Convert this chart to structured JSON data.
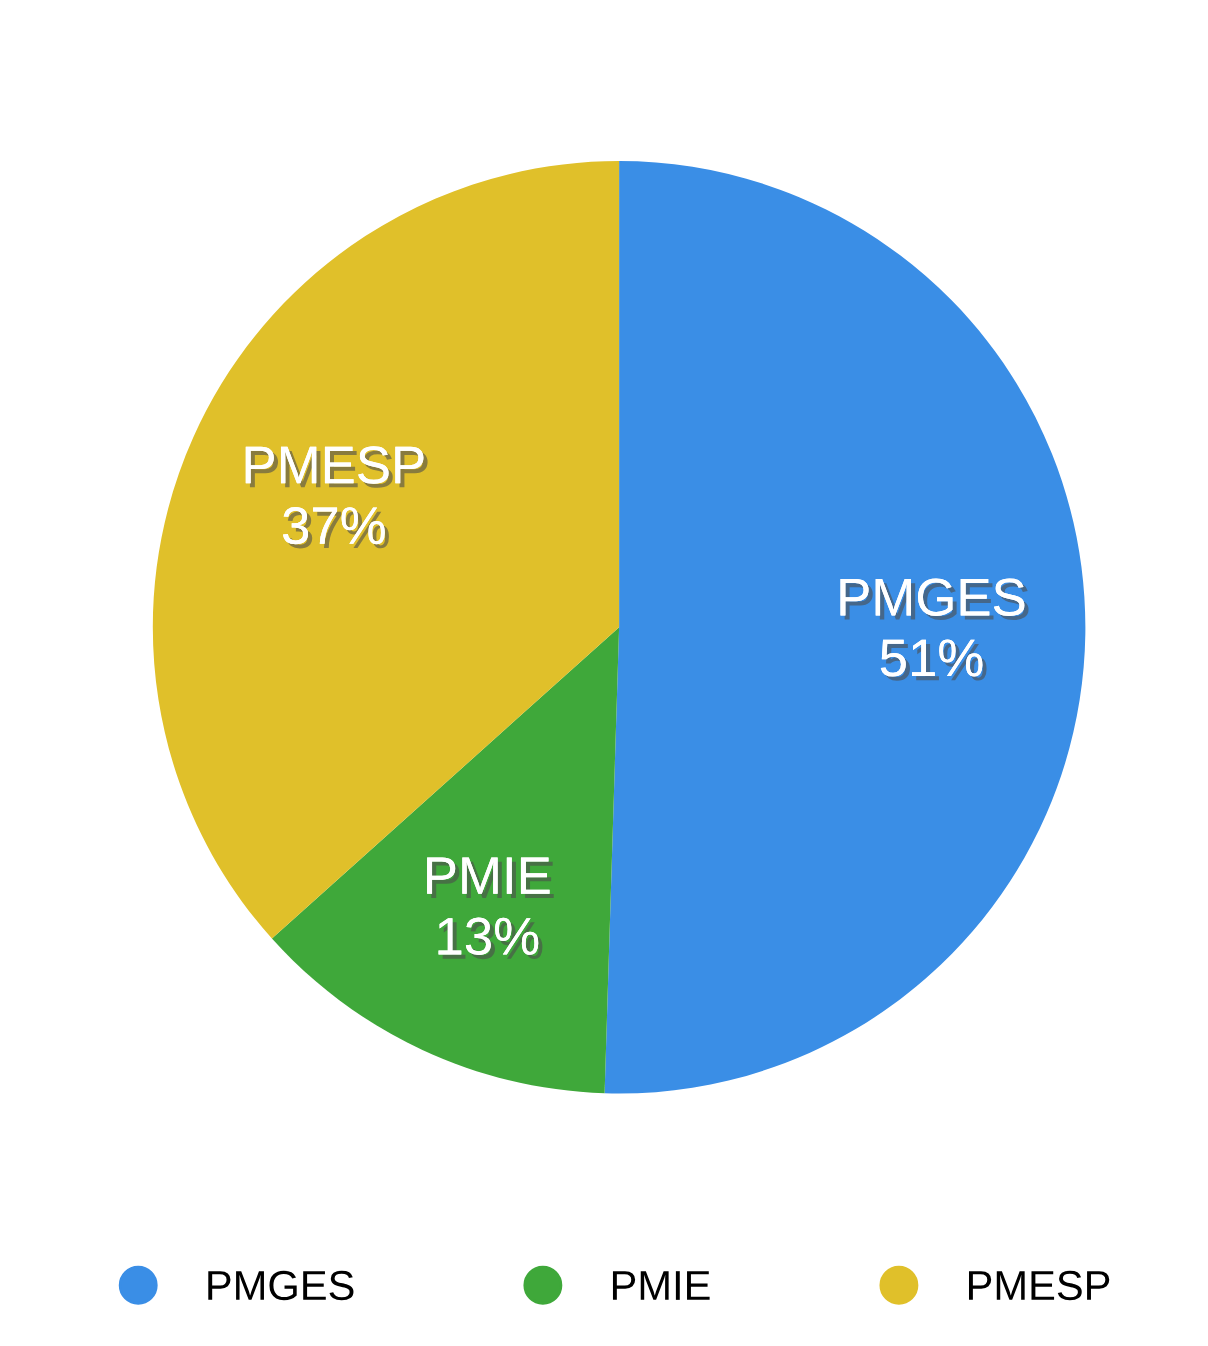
{
  "chart_data": {
    "type": "pie",
    "categories": [
      "PMGES",
      "PMIE",
      "PMESP"
    ],
    "values": [
      51,
      13,
      37
    ],
    "colors": [
      "#3a8ee6",
      "#3fa83a",
      "#e0c02a"
    ],
    "value_labels": [
      "51%",
      "13%",
      "37%"
    ],
    "legend": "bottom"
  }
}
